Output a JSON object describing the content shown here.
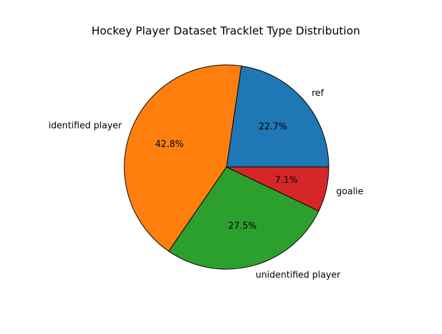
{
  "chart_data": {
    "type": "pie",
    "title": "Hockey Player Dataset Tracklet Type Distribution",
    "categories": [
      "ref",
      "identified player",
      "unidentified player",
      "goalie"
    ],
    "values": [
      22.7,
      42.8,
      27.5,
      7.1
    ],
    "percent_labels": [
      "22.7%",
      "42.8%",
      "27.5%",
      "7.1%"
    ],
    "colors": [
      "#1f77b4",
      "#ff7f0e",
      "#2ca02c",
      "#d62728"
    ],
    "start_angle_deg": 0,
    "direction": "counterclockwise",
    "edge_color": "#000000",
    "legend": "none"
  }
}
